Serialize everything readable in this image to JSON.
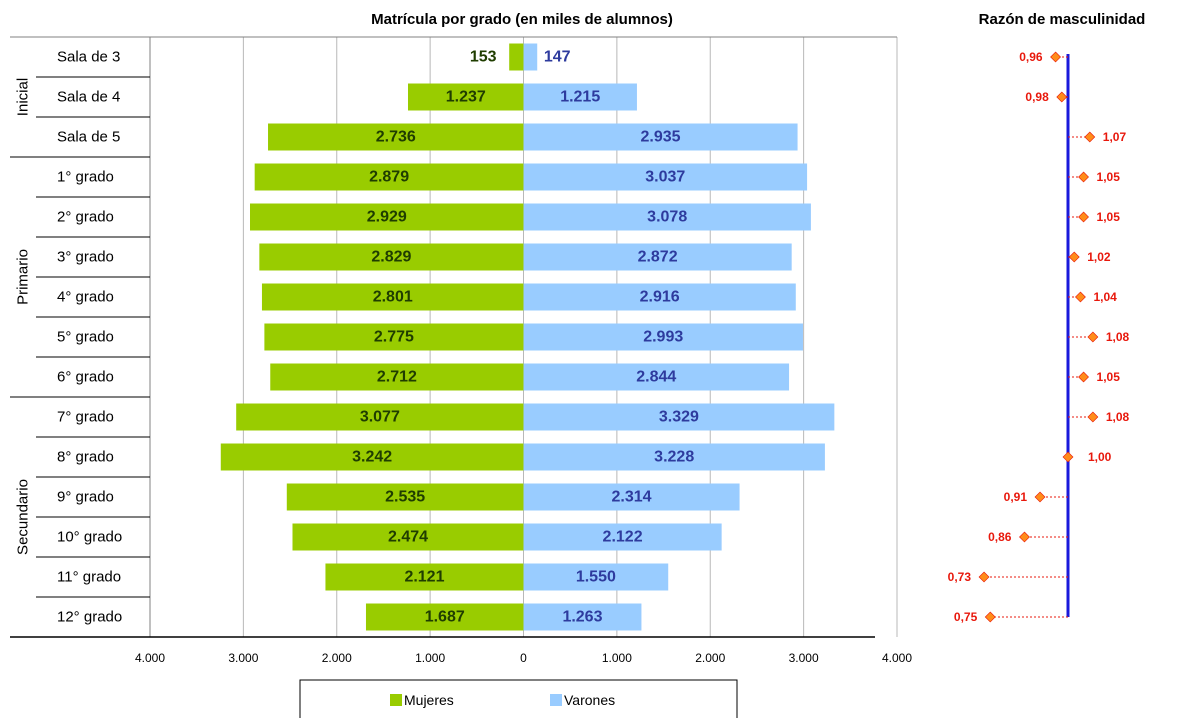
{
  "chart_data": [
    {
      "type": "bar",
      "orientation": "horizontal-diverging",
      "title": "Matrícula por grado (en miles de alumnos)",
      "groups": [
        {
          "label": "Inicial",
          "categories": [
            "Sala de 3",
            "Sala de 4",
            "Sala de 5"
          ]
        },
        {
          "label": "Primario",
          "categories": [
            "1° grado",
            "2° grado",
            "3° grado",
            "4° grado",
            "5° grado",
            "6° grado"
          ]
        },
        {
          "label": "Secundario",
          "categories": [
            "7° grado",
            "8° grado",
            "9° grado",
            "10° grado",
            "11° grado",
            "12° grado"
          ]
        }
      ],
      "categories": [
        "Sala de 3",
        "Sala de 4",
        "Sala de 5",
        "1° grado",
        "2° grado",
        "3° grado",
        "4° grado",
        "5° grado",
        "6° grado",
        "7° grado",
        "8° grado",
        "9° grado",
        "10° grado",
        "11° grado",
        "12° grado"
      ],
      "series": [
        {
          "name": "Mujeres",
          "color": "#99cc00",
          "label_color": "#1f3d00",
          "side": "left",
          "values": [
            153,
            1237,
            2736,
            2879,
            2929,
            2829,
            2801,
            2775,
            2712,
            3077,
            3242,
            2535,
            2474,
            2121,
            1687
          ],
          "labels": [
            "153",
            "1.237",
            "2.736",
            "2.879",
            "2.929",
            "2.829",
            "2.801",
            "2.775",
            "2.712",
            "3.077",
            "3.242",
            "2.535",
            "2.474",
            "2.121",
            "1.687"
          ]
        },
        {
          "name": "Varones",
          "color": "#99ccff",
          "label_color": "#2e3b9e",
          "side": "right",
          "values": [
            147,
            1215,
            2935,
            3037,
            3078,
            2872,
            2916,
            2993,
            2844,
            3329,
            3228,
            2314,
            2122,
            1550,
            1263
          ],
          "labels": [
            "147",
            "1.215",
            "2.935",
            "3.037",
            "3.078",
            "2.872",
            "2.916",
            "2.993",
            "2.844",
            "3.329",
            "3.228",
            "2.314",
            "2.122",
            "1.550",
            "1.263"
          ]
        }
      ],
      "xlim": [
        -4000,
        4000
      ],
      "xticks": [
        -4000,
        -3000,
        -2000,
        -1000,
        0,
        1000,
        2000,
        3000,
        4000
      ],
      "xtick_labels": [
        "4.000",
        "3.000",
        "2.000",
        "1.000",
        "0",
        "1.000",
        "2.000",
        "3.000",
        "4.000"
      ],
      "grid": true,
      "legend": {
        "placement": "bottom",
        "entries": [
          "Mujeres",
          "Varones"
        ]
      }
    },
    {
      "type": "scatter",
      "title": "Razón de masculinidad",
      "categories": [
        "Sala de 3",
        "Sala de 4",
        "Sala de 5",
        "1° grado",
        "2° grado",
        "3° grado",
        "4° grado",
        "5° grado",
        "6° grado",
        "7° grado",
        "8° grado",
        "9° grado",
        "10° grado",
        "11° grado",
        "12° grado"
      ],
      "reference_value": 1.0,
      "reference_color": "#1a1adb",
      "marker_color": "#ff8c1a",
      "label_color": "#e8180c",
      "values": [
        0.96,
        0.98,
        1.07,
        1.05,
        1.05,
        1.02,
        1.04,
        1.08,
        1.05,
        1.08,
        1.0,
        0.91,
        0.86,
        0.73,
        0.75
      ],
      "labels": [
        "0,96",
        "0,98",
        "1,07",
        "1,05",
        "1,05",
        "1,02",
        "1,04",
        "1,08",
        "1,05",
        "1,08",
        "1,00",
        "0,91",
        "0,86",
        "0,73",
        "0,75"
      ]
    }
  ]
}
